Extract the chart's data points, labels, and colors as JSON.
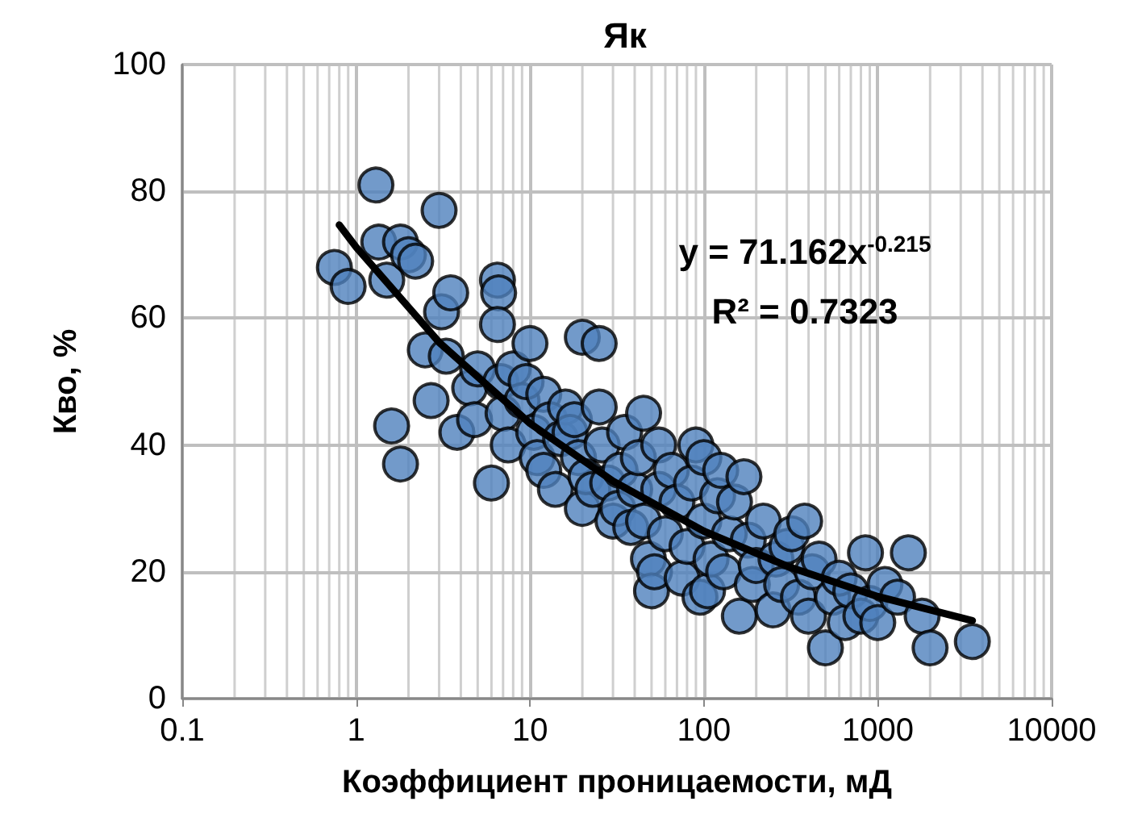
{
  "chart_data": {
    "type": "scatter",
    "title": "Як",
    "xlabel": "Коэффициент проницаемости, мД",
    "ylabel": "Кво, %",
    "log": "x",
    "grid": true,
    "marker": "circle",
    "xlim": [
      0.1,
      10000
    ],
    "xticks": [
      0.1,
      1,
      10,
      100,
      1000,
      10000
    ],
    "ylim": [
      0,
      100
    ],
    "yticks": [
      0,
      20,
      40,
      60,
      80,
      100
    ],
    "annotations": [
      "y = 71.162x$^{-0.215}$",
      "R² = 0.7323"
    ],
    "series": [
      {
        "type": "scatter",
        "color": "#4f81bd",
        "x": [
          0.75,
          0.9,
          1.3,
          1.35,
          1.5,
          1.8,
          2,
          2.2,
          1.6,
          1.8,
          2.5,
          2.7,
          3,
          3.1,
          3.5,
          3.3,
          3.8,
          4.5,
          4.8,
          5,
          6,
          6.5,
          6.6,
          6.5,
          6.8,
          7,
          7.5,
          8,
          9,
          9.5,
          10,
          10.5,
          11,
          12,
          12,
          13,
          14,
          15,
          16,
          17,
          18,
          19,
          20,
          20,
          21,
          23,
          25,
          25,
          26,
          28,
          30,
          32,
          33,
          35,
          38,
          40,
          42,
          45,
          45,
          48,
          50,
          52,
          55,
          55,
          60,
          65,
          70,
          75,
          80,
          85,
          90,
          95,
          100,
          100,
          105,
          110,
          120,
          125,
          130,
          140,
          150,
          160,
          170,
          180,
          190,
          200,
          220,
          250,
          260,
          280,
          300,
          320,
          350,
          380,
          400,
          420,
          460,
          500,
          550,
          600,
          650,
          700,
          800,
          850,
          900,
          1000,
          1100,
          1300,
          1500,
          1800,
          2000,
          3500
        ],
        "values": [
          68,
          65,
          81,
          72,
          66,
          72,
          70,
          69,
          43,
          37,
          55,
          47,
          77,
          61,
          64,
          54,
          42,
          49,
          44,
          52,
          34,
          66,
          64,
          59,
          50,
          45,
          40,
          52,
          47,
          50,
          56,
          42,
          38,
          36,
          48,
          44,
          33,
          41,
          46,
          42,
          44,
          38,
          57,
          30,
          35,
          33,
          56,
          46,
          40,
          34,
          28,
          30,
          36,
          42,
          27,
          33,
          38,
          45,
          28,
          22,
          17,
          20,
          40,
          33,
          26,
          36,
          31,
          19,
          24,
          34,
          40,
          16,
          38,
          28,
          17,
          22,
          32,
          36,
          20,
          26,
          31,
          13,
          35,
          25,
          18,
          21,
          28,
          14,
          22,
          18,
          24,
          26,
          16,
          28,
          13,
          20,
          22,
          8,
          16,
          19,
          12,
          17,
          13,
          23,
          15,
          12,
          18,
          16,
          23,
          13,
          8,
          9
        ]
      },
      {
        "type": "line",
        "color": "#000000",
        "marker": "none",
        "x": [
          0.8,
          1,
          3,
          10,
          30,
          100,
          300,
          1000,
          3500
        ],
        "values": [
          74.7,
          71.2,
          56.2,
          43.4,
          34.3,
          26.4,
          20.9,
          16.1,
          12.3
        ]
      }
    ]
  }
}
